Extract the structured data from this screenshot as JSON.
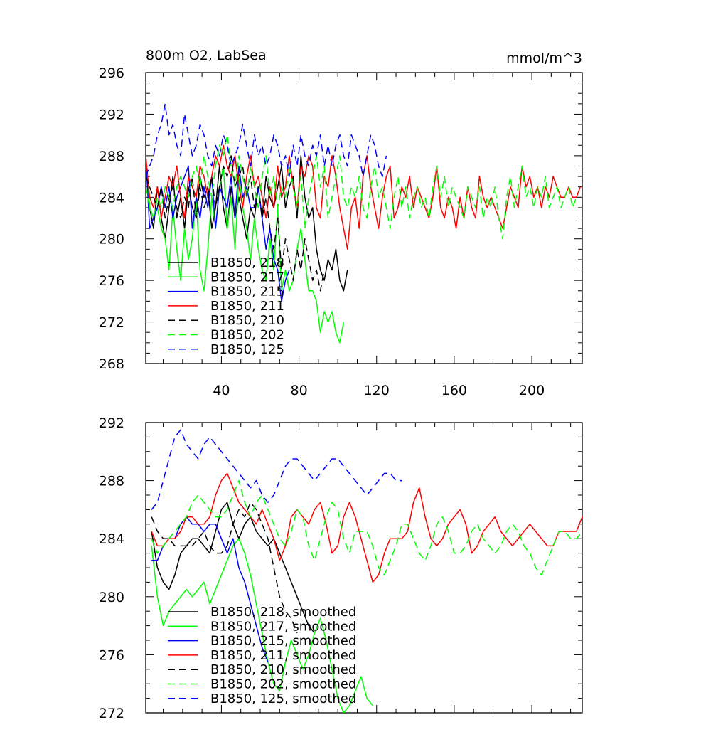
{
  "figure": {
    "title_left": "800m O2, LabSea",
    "title_right": "mmol/m^3"
  },
  "chart_data": [
    {
      "type": "line",
      "title": "800m O2, LabSea",
      "units": "mmol/m^3",
      "xlim": [
        1,
        226
      ],
      "ylim": [
        268,
        296
      ],
      "xticks": [
        40,
        80,
        120,
        160,
        200
      ],
      "yticks": [
        268,
        272,
        276,
        280,
        284,
        288,
        292,
        296
      ],
      "grid": false,
      "legend_position": "bottom-left",
      "series": [
        {
          "name": "B1850, 218",
          "color": "#000000",
          "dash": "solid",
          "step": 2,
          "start": 1,
          "values": [
            288,
            283,
            281,
            285,
            282,
            280,
            283,
            286,
            282,
            284,
            281,
            285,
            283,
            282,
            286,
            284,
            285,
            281,
            283,
            287,
            283,
            281,
            285,
            282,
            284,
            282,
            280,
            283,
            282,
            285,
            282,
            286,
            284,
            283,
            285,
            287,
            283,
            285,
            286,
            282,
            288,
            284,
            282,
            283,
            279,
            277,
            276,
            278,
            277,
            279,
            276,
            275,
            277
          ]
        },
        {
          "name": "B1850, 217",
          "color": "#00ff00",
          "dash": "solid",
          "step": 2,
          "start": 1,
          "values": [
            288,
            283,
            282,
            283,
            281,
            280,
            277,
            283,
            279,
            276,
            281,
            278,
            280,
            284,
            277,
            275,
            279,
            284,
            281,
            285,
            287,
            281,
            284,
            279,
            286,
            283,
            281,
            278,
            282,
            279,
            277,
            276,
            280,
            277,
            283,
            275,
            277,
            275,
            276,
            279,
            281,
            278,
            275,
            275,
            274,
            271,
            273,
            272,
            273,
            271,
            270,
            272
          ]
        },
        {
          "name": "B1850, 215",
          "color": "#0000ff",
          "dash": "solid",
          "step": 2,
          "start": 1,
          "values": [
            288,
            281,
            282,
            283,
            285,
            283,
            285,
            282,
            284,
            285,
            286,
            287,
            281,
            284,
            282,
            285,
            283,
            286,
            281,
            285,
            284,
            283,
            286,
            282,
            287,
            284,
            285,
            283,
            283,
            285,
            282,
            279,
            281,
            278,
            277,
            274,
            276,
            277
          ]
        },
        {
          "name": "B1850, 211",
          "color": "#ff0000",
          "dash": "solid",
          "step": 2,
          "start": 1,
          "values": [
            288,
            284,
            283,
            285,
            282,
            284,
            286,
            285,
            287,
            284,
            282,
            286,
            285,
            284,
            287,
            286,
            284,
            286,
            288,
            287,
            289,
            287,
            286,
            288,
            285,
            283,
            286,
            288,
            285,
            286,
            284,
            282,
            285,
            283,
            287,
            284,
            285,
            288,
            285,
            283,
            287,
            286,
            288,
            287,
            283,
            282,
            286,
            285,
            288,
            286,
            283,
            281,
            279,
            283,
            284,
            281,
            286,
            288,
            285,
            283,
            281,
            284,
            286,
            287,
            282,
            283,
            285,
            284,
            286,
            283,
            285,
            284,
            283,
            282,
            284,
            287,
            283,
            282,
            284,
            283,
            281,
            284,
            282,
            285,
            283,
            282,
            286,
            284,
            283,
            284,
            283,
            282,
            281,
            283,
            285,
            284,
            283,
            287,
            285,
            286,
            284,
            285,
            283,
            285,
            284,
            286,
            285,
            284,
            284,
            285,
            284,
            284,
            285
          ]
        },
        {
          "name": "B1850, 210",
          "color": "#000000",
          "dash": "dashed",
          "step": 2,
          "start": 1,
          "values": [
            286,
            285,
            284,
            283,
            285,
            282,
            284,
            285,
            283,
            282,
            284,
            283,
            286,
            282,
            285,
            283,
            284,
            286,
            283,
            285,
            287,
            286,
            288,
            285,
            286,
            287,
            284,
            286,
            283,
            285,
            282,
            284,
            281,
            279,
            282,
            277,
            280,
            278,
            276,
            279,
            277,
            280,
            278,
            276,
            277,
            275,
            277
          ]
        },
        {
          "name": "B1850, 202",
          "color": "#00ff00",
          "dash": "dashed",
          "step": 2,
          "start": 1,
          "values": [
            285,
            283,
            282,
            284,
            283,
            285,
            284,
            283,
            285,
            286,
            285,
            284,
            286,
            287,
            285,
            288,
            286,
            284,
            287,
            289,
            288,
            290,
            287,
            285,
            288,
            286,
            284,
            287,
            285,
            283,
            286,
            288,
            284,
            286,
            283,
            285,
            284,
            287,
            285,
            283,
            286,
            281,
            284,
            286,
            288,
            285,
            287,
            282,
            284,
            286,
            288,
            284,
            283,
            285,
            284,
            286,
            283,
            282,
            285,
            287,
            284,
            285,
            283,
            281,
            284,
            286,
            283,
            285,
            282,
            284,
            285,
            283,
            284,
            282,
            285,
            287,
            284,
            286,
            283,
            285,
            284,
            283,
            282,
            285,
            284,
            283,
            285,
            282,
            284,
            283,
            285,
            282,
            280,
            284,
            286,
            283,
            285,
            287,
            284,
            285,
            283,
            285,
            284,
            286,
            283,
            284,
            285,
            283,
            284,
            285,
            283,
            284
          ]
        },
        {
          "name": "B1850, 125",
          "color": "#0000ff",
          "dash": "dashed",
          "step": 2,
          "start": 1,
          "values": [
            286,
            287,
            288,
            290,
            291,
            293,
            290,
            291,
            289,
            288,
            292,
            290,
            288,
            289,
            291,
            290,
            288,
            287,
            289,
            288,
            290,
            289,
            287,
            288,
            289,
            291,
            289,
            287,
            290,
            288,
            289,
            287,
            288,
            290,
            289,
            287,
            288,
            286,
            289,
            287,
            290,
            288,
            287,
            289,
            288,
            290,
            287,
            289,
            287,
            289,
            290,
            288,
            287,
            290,
            289,
            288,
            286,
            288,
            290,
            289,
            287,
            286,
            288
          ]
        }
      ],
      "legend": [
        "B1850, 218",
        "B1850, 217",
        "B1850, 215",
        "B1850, 211",
        "B1850, 210",
        "B1850, 202",
        "B1850, 125"
      ]
    },
    {
      "type": "line",
      "xlim": [
        1,
        226
      ],
      "ylim": [
        272,
        292
      ],
      "xticks": [
        40,
        80,
        120,
        160,
        200
      ],
      "yticks": [
        272,
        276,
        280,
        284,
        288,
        292
      ],
      "grid": false,
      "legend_position": "bottom-left",
      "series": [
        {
          "name": "B1850, 218, smoothed",
          "color": "#000000",
          "dash": "solid",
          "step": 3,
          "start": 4,
          "values": [
            284.5,
            282,
            281,
            280.5,
            281.5,
            283,
            283.5,
            284,
            284,
            283.5,
            283,
            284.5,
            286,
            286.5,
            285,
            284,
            285,
            285.5,
            284.5,
            284,
            283.5,
            284,
            283,
            282,
            281,
            280,
            279,
            278,
            277.5
          ]
        },
        {
          "name": "B1850, 217, smoothed",
          "color": "#00ff00",
          "dash": "solid",
          "step": 3,
          "start": 4,
          "values": [
            283.5,
            280,
            278,
            279,
            279.5,
            280,
            280.5,
            280,
            280.5,
            281,
            279.5,
            280.5,
            281.5,
            282.5,
            283.5,
            284,
            283,
            281.5,
            279.5,
            277.5,
            275.5,
            274,
            273.5,
            275.5,
            277,
            276,
            275,
            276,
            277.5,
            278.5,
            277,
            275,
            273,
            272,
            272.5,
            273.5,
            274.5,
            273,
            272.5
          ]
        },
        {
          "name": "B1850, 215, smoothed",
          "color": "#0000ff",
          "dash": "solid",
          "step": 3,
          "start": 4,
          "values": [
            282.5,
            282.5,
            283.5,
            284,
            284,
            285,
            285.5,
            285,
            285,
            284.5,
            285,
            285,
            284,
            283,
            284,
            282,
            281,
            279.5,
            278,
            276.5,
            275.5
          ]
        },
        {
          "name": "B1850, 211, smoothed",
          "color": "#ff0000",
          "dash": "solid",
          "step": 3,
          "start": 4,
          "values": [
            284.5,
            283.5,
            283.5,
            284,
            284,
            284.5,
            285.5,
            285.5,
            285,
            285,
            285.5,
            287,
            288,
            288.5,
            287.5,
            286.5,
            286,
            285.5,
            285,
            286,
            285,
            284,
            282.5,
            283.5,
            285.5,
            286,
            285.5,
            285,
            286,
            286.5,
            285,
            283,
            283.5,
            285.5,
            286.5,
            285.5,
            284,
            282.5,
            281,
            281.5,
            283,
            284,
            284,
            284,
            284.5,
            286.5,
            287.5,
            285.5,
            284,
            283.5,
            284,
            285,
            285.5,
            286,
            285,
            283,
            283.5,
            284.5,
            285,
            285.5,
            284.5,
            284,
            283.5,
            284,
            284.5,
            285,
            284.5,
            284,
            283.5,
            283.5,
            284.5,
            284.5,
            284.5,
            284.5,
            285.5,
            286.5,
            285.5,
            284.5,
            284.5
          ]
        },
        {
          "name": "B1850, 210, smoothed",
          "color": "#000000",
          "dash": "dashed",
          "step": 3,
          "start": 4,
          "values": [
            285.5,
            284.5,
            284,
            284,
            283.5,
            283.5,
            283.5,
            283.5,
            284,
            284.5,
            283.5,
            283,
            283,
            283.5,
            285,
            286,
            285.5,
            286.5,
            286,
            285,
            284,
            282,
            280,
            279,
            278.5,
            277.5
          ]
        },
        {
          "name": "B1850, 202, smoothed",
          "color": "#00ff00",
          "dash": "dashed",
          "step": 3,
          "start": 4,
          "values": [
            284,
            283,
            283.5,
            284,
            284.5,
            285,
            285.5,
            286.5,
            287,
            286.5,
            286,
            285.5,
            285.5,
            286,
            287,
            288,
            286.5,
            285.5,
            286.5,
            287,
            286,
            285,
            284,
            283.5,
            284.5,
            286,
            285.5,
            283.5,
            282.5,
            284,
            285.5,
            286.5,
            286,
            284,
            283,
            284.5,
            284.5,
            284.5,
            283.5,
            282,
            281.5,
            282.5,
            283.5,
            285,
            285,
            284,
            283,
            282.5,
            283.5,
            285,
            285.5,
            284.5,
            283,
            283,
            283.5,
            284.5,
            285,
            284,
            283.5,
            283,
            283.5,
            284.5,
            285,
            284.5,
            283.5,
            283,
            282,
            281.5,
            282.5,
            283.5,
            284.5,
            284.5,
            284,
            284,
            284.5
          ]
        },
        {
          "name": "B1850, 125, smoothed",
          "color": "#0000ff",
          "dash": "dashed",
          "step": 3,
          "start": 4,
          "values": [
            286,
            286.5,
            288,
            289.5,
            291,
            291.5,
            290.5,
            290,
            289.5,
            290.5,
            291,
            290.5,
            290,
            289.5,
            289,
            288.5,
            288,
            287.5,
            288,
            287,
            286.5,
            287,
            288,
            289,
            289.5,
            289.5,
            289,
            288.5,
            288,
            288.5,
            289,
            289.5,
            289.5,
            289,
            288.5,
            288,
            287.5,
            287,
            287.5,
            288,
            288.5,
            288.5,
            288,
            288
          ]
        }
      ],
      "legend": [
        "B1850, 218, smoothed",
        "B1850, 217, smoothed",
        "B1850, 215, smoothed",
        "B1850, 211, smoothed",
        "B1850, 210, smoothed",
        "B1850, 202, smoothed",
        "B1850, 125, smoothed"
      ]
    }
  ]
}
